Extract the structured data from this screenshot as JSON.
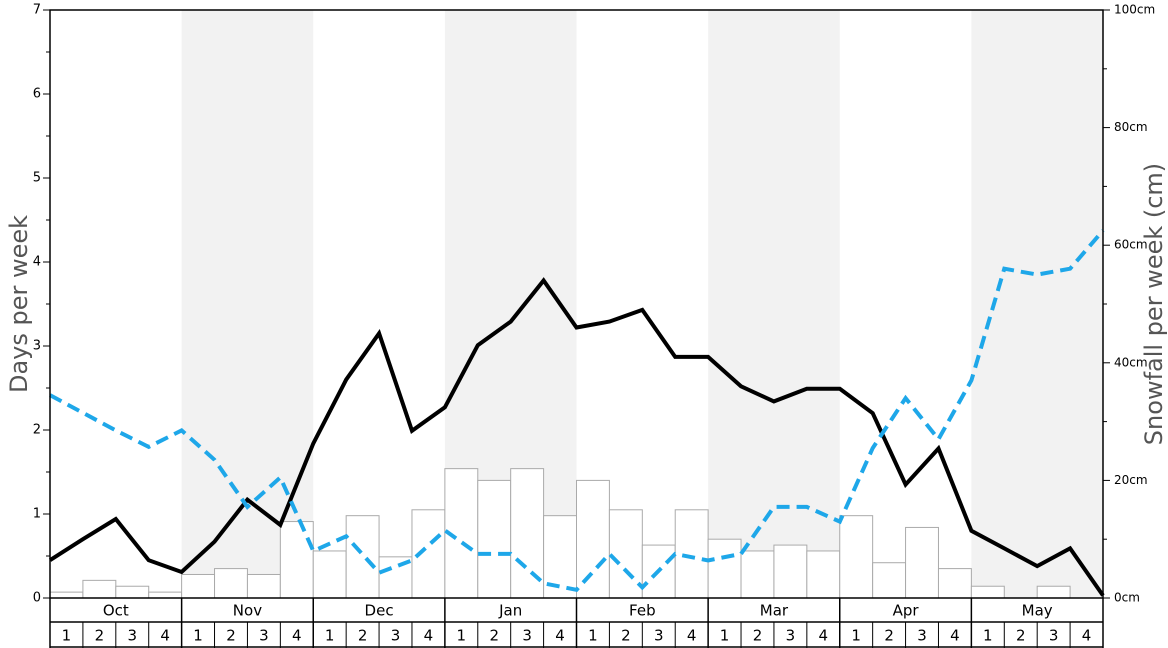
{
  "chart_data": {
    "type": "bar",
    "months": [
      "Oct",
      "Nov",
      "Dec",
      "Jan",
      "Feb",
      "Mar",
      "Apr",
      "May"
    ],
    "weeks": [
      "1",
      "2",
      "3",
      "4"
    ],
    "ylabel_left": "Days per week",
    "ylabel_right": "Snowfall per week (cm)",
    "ylim_left": [
      0,
      7
    ],
    "left_ticks": [
      "0",
      "1",
      "2",
      "3",
      "4",
      "5",
      "6",
      "7"
    ],
    "ylim_right": [
      0,
      100
    ],
    "right_ticks": [
      "0cm",
      "20cm",
      "40cm",
      "60cm",
      "80cm",
      "100cm"
    ],
    "grid": false,
    "alternating_month_shading": true,
    "colors": {
      "bar_fill": "#ffffff",
      "bar_stroke": "#aaaaaa",
      "black_line": "#000000",
      "blue_line": "#1ea7e9",
      "shade": "#f2f2f2"
    },
    "series": [
      {
        "kind": "bar",
        "axis": "right",
        "values": [
          1,
          3,
          2,
          1,
          4,
          5,
          4,
          13,
          8,
          14,
          7,
          15,
          22,
          20,
          22,
          14,
          20,
          15,
          9,
          15,
          10,
          8,
          9,
          8,
          14,
          6,
          12,
          5,
          2,
          0,
          2,
          0
        ]
      },
      {
        "kind": "line",
        "style": "solid",
        "axis": "left",
        "values": [
          0.45,
          0.7,
          0.94,
          0.45,
          0.31,
          0.67,
          1.17,
          0.87,
          1.84,
          2.6,
          3.15,
          1.99,
          2.27,
          3.01,
          3.29,
          3.78,
          3.22,
          3.29,
          3.43,
          2.87,
          2.87,
          2.52,
          2.34,
          2.49,
          2.49,
          2.2,
          1.35,
          1.78,
          0.8,
          0.59,
          0.38,
          0.59,
          0.03
        ]
      },
      {
        "kind": "line",
        "style": "dashed",
        "axis": "right",
        "values": [
          34.5,
          31.5,
          28.5,
          25.7,
          28.5,
          23.5,
          15.5,
          20.5,
          8,
          10.5,
          4.3,
          6.4,
          11.5,
          7.5,
          7.5,
          2.5,
          1.4,
          7.5,
          1.8,
          7.5,
          6.4,
          7.5,
          15.5,
          15.5,
          13,
          25.5,
          34,
          27,
          37,
          56,
          55,
          56,
          62.5
        ]
      }
    ]
  }
}
